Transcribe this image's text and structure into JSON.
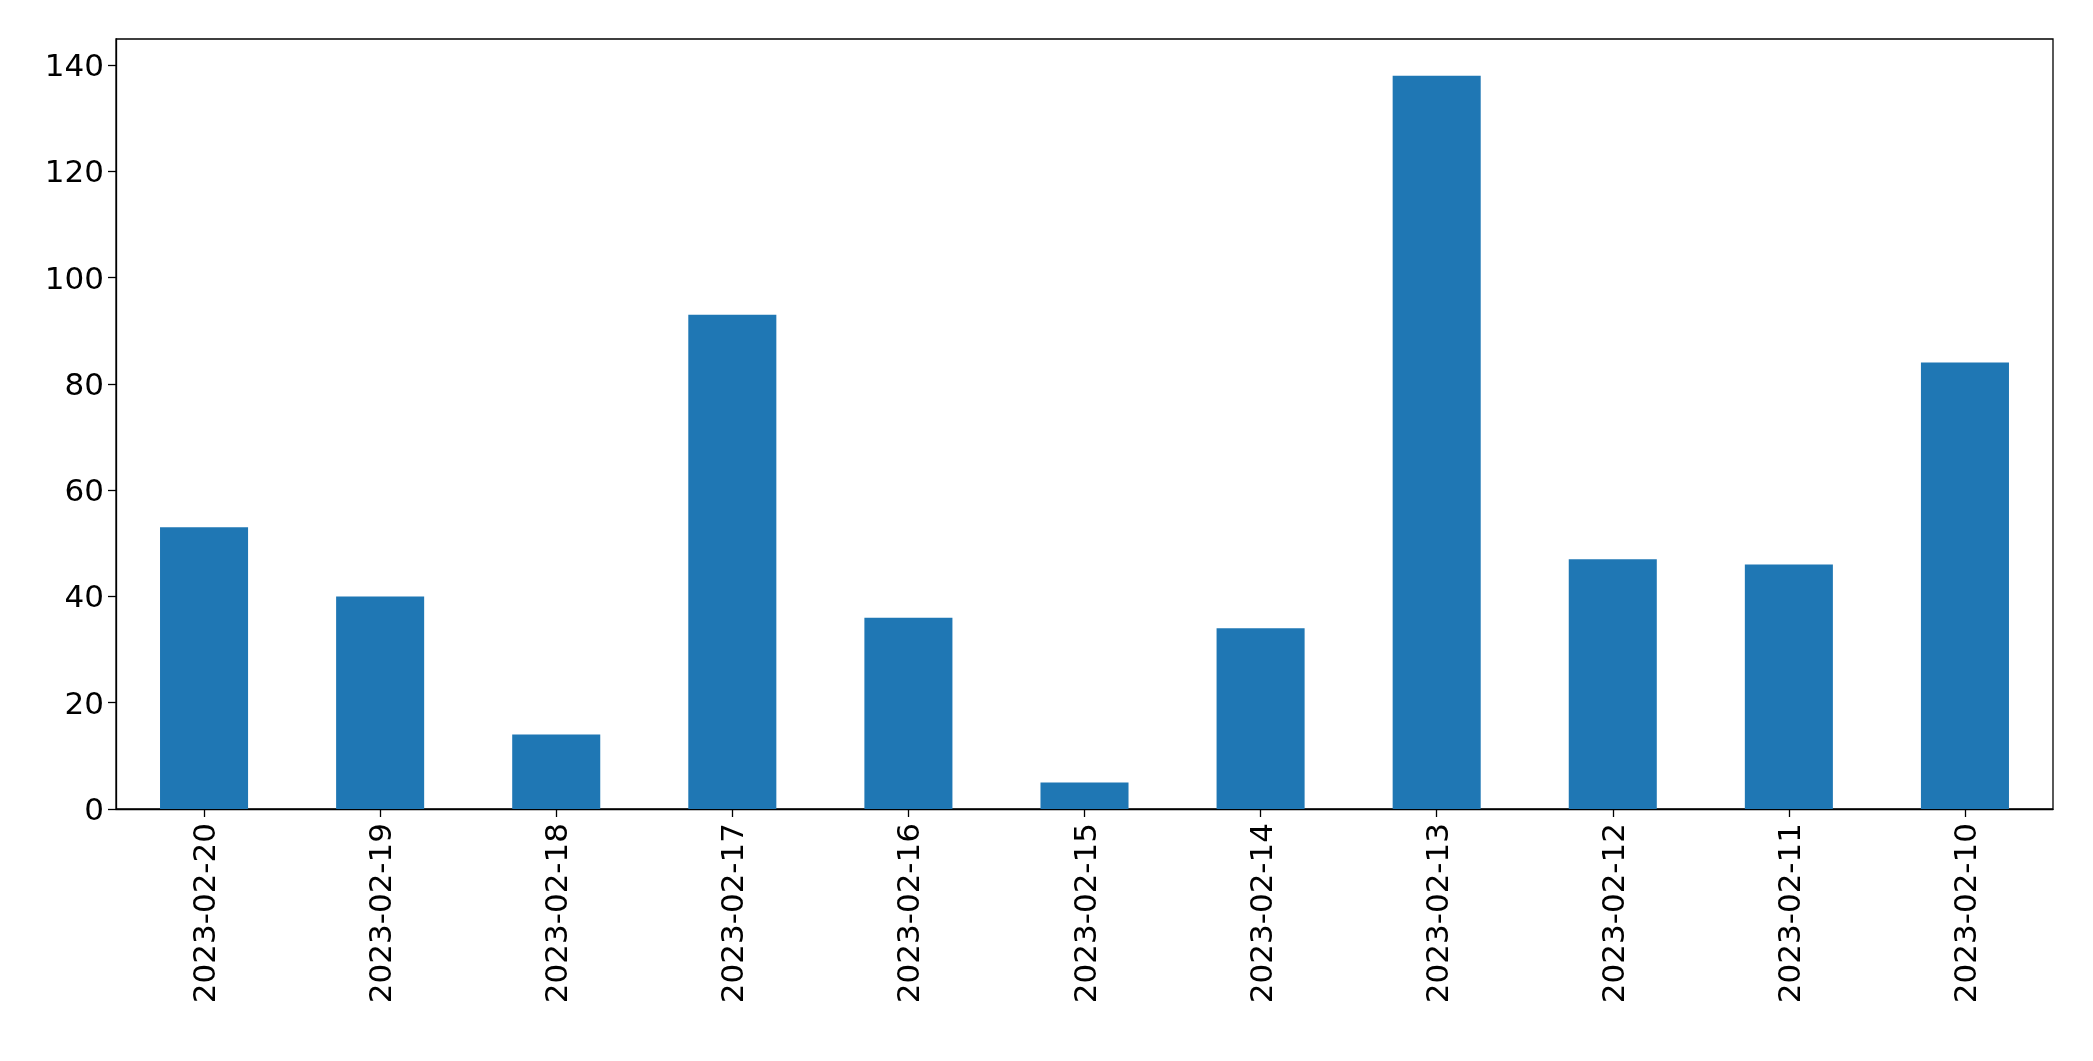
{
  "chart_data": {
    "type": "bar",
    "categories": [
      "2023-02-20",
      "2023-02-19",
      "2023-02-18",
      "2023-02-17",
      "2023-02-16",
      "2023-02-15",
      "2023-02-14",
      "2023-02-13",
      "2023-02-12",
      "2023-02-11",
      "2023-02-10"
    ],
    "values": [
      53,
      40,
      14,
      93,
      36,
      5,
      34,
      138,
      47,
      46,
      84
    ],
    "color": "#1f77b4",
    "ylim": [
      0,
      144.9
    ],
    "yticks": [
      0,
      20,
      40,
      60,
      80,
      100,
      120,
      140
    ]
  }
}
